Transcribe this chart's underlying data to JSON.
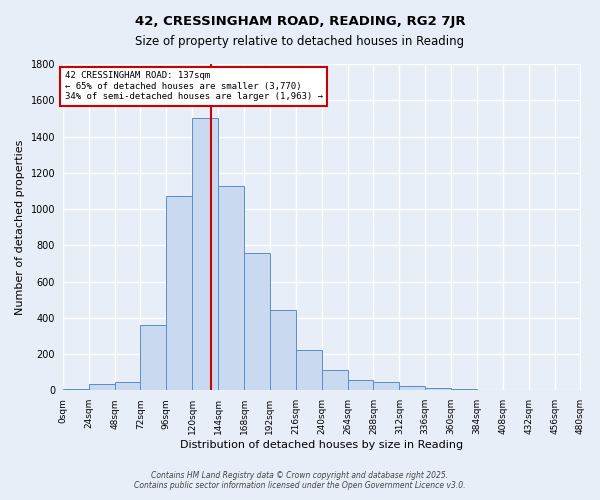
{
  "title": "42, CRESSINGHAM ROAD, READING, RG2 7JR",
  "subtitle": "Size of property relative to detached houses in Reading",
  "xlabel": "Distribution of detached houses by size in Reading",
  "ylabel": "Number of detached properties",
  "bin_edges": [
    0,
    24,
    48,
    72,
    96,
    120,
    144,
    168,
    192,
    216,
    240,
    264,
    288,
    312,
    336,
    360,
    384,
    408,
    432,
    456,
    480
  ],
  "bar_heights": [
    10,
    35,
    45,
    360,
    1070,
    1500,
    1130,
    760,
    445,
    225,
    115,
    55,
    45,
    25,
    15,
    10,
    5,
    3,
    2,
    1
  ],
  "bar_facecolor": "#c9d9ef",
  "bar_edgecolor": "#5b8cc8",
  "background_color": "#e8eef8",
  "grid_color": "#d8e0ee",
  "vline_x": 137,
  "vline_color": "#cc0000",
  "annotation_text": "42 CRESSINGHAM ROAD: 137sqm\n← 65% of detached houses are smaller (3,770)\n34% of semi-detached houses are larger (1,963) →",
  "annotation_box_edgecolor": "#cc0000",
  "annotation_box_facecolor": "#ffffff",
  "footer_line1": "Contains HM Land Registry data © Crown copyright and database right 2025.",
  "footer_line2": "Contains public sector information licensed under the Open Government Licence v3.0.",
  "xlim": [
    0,
    480
  ],
  "ylim": [
    0,
    1800
  ],
  "yticks": [
    0,
    200,
    400,
    600,
    800,
    1000,
    1200,
    1400,
    1600,
    1800
  ],
  "xtick_labels": [
    "0sqm",
    "24sqm",
    "48sqm",
    "72sqm",
    "96sqm",
    "120sqm",
    "144sqm",
    "168sqm",
    "192sqm",
    "216sqm",
    "240sqm",
    "264sqm",
    "288sqm",
    "312sqm",
    "336sqm",
    "360sqm",
    "384sqm",
    "408sqm",
    "432sqm",
    "456sqm",
    "480sqm"
  ],
  "fig_width": 6.0,
  "fig_height": 5.0,
  "dpi": 100
}
